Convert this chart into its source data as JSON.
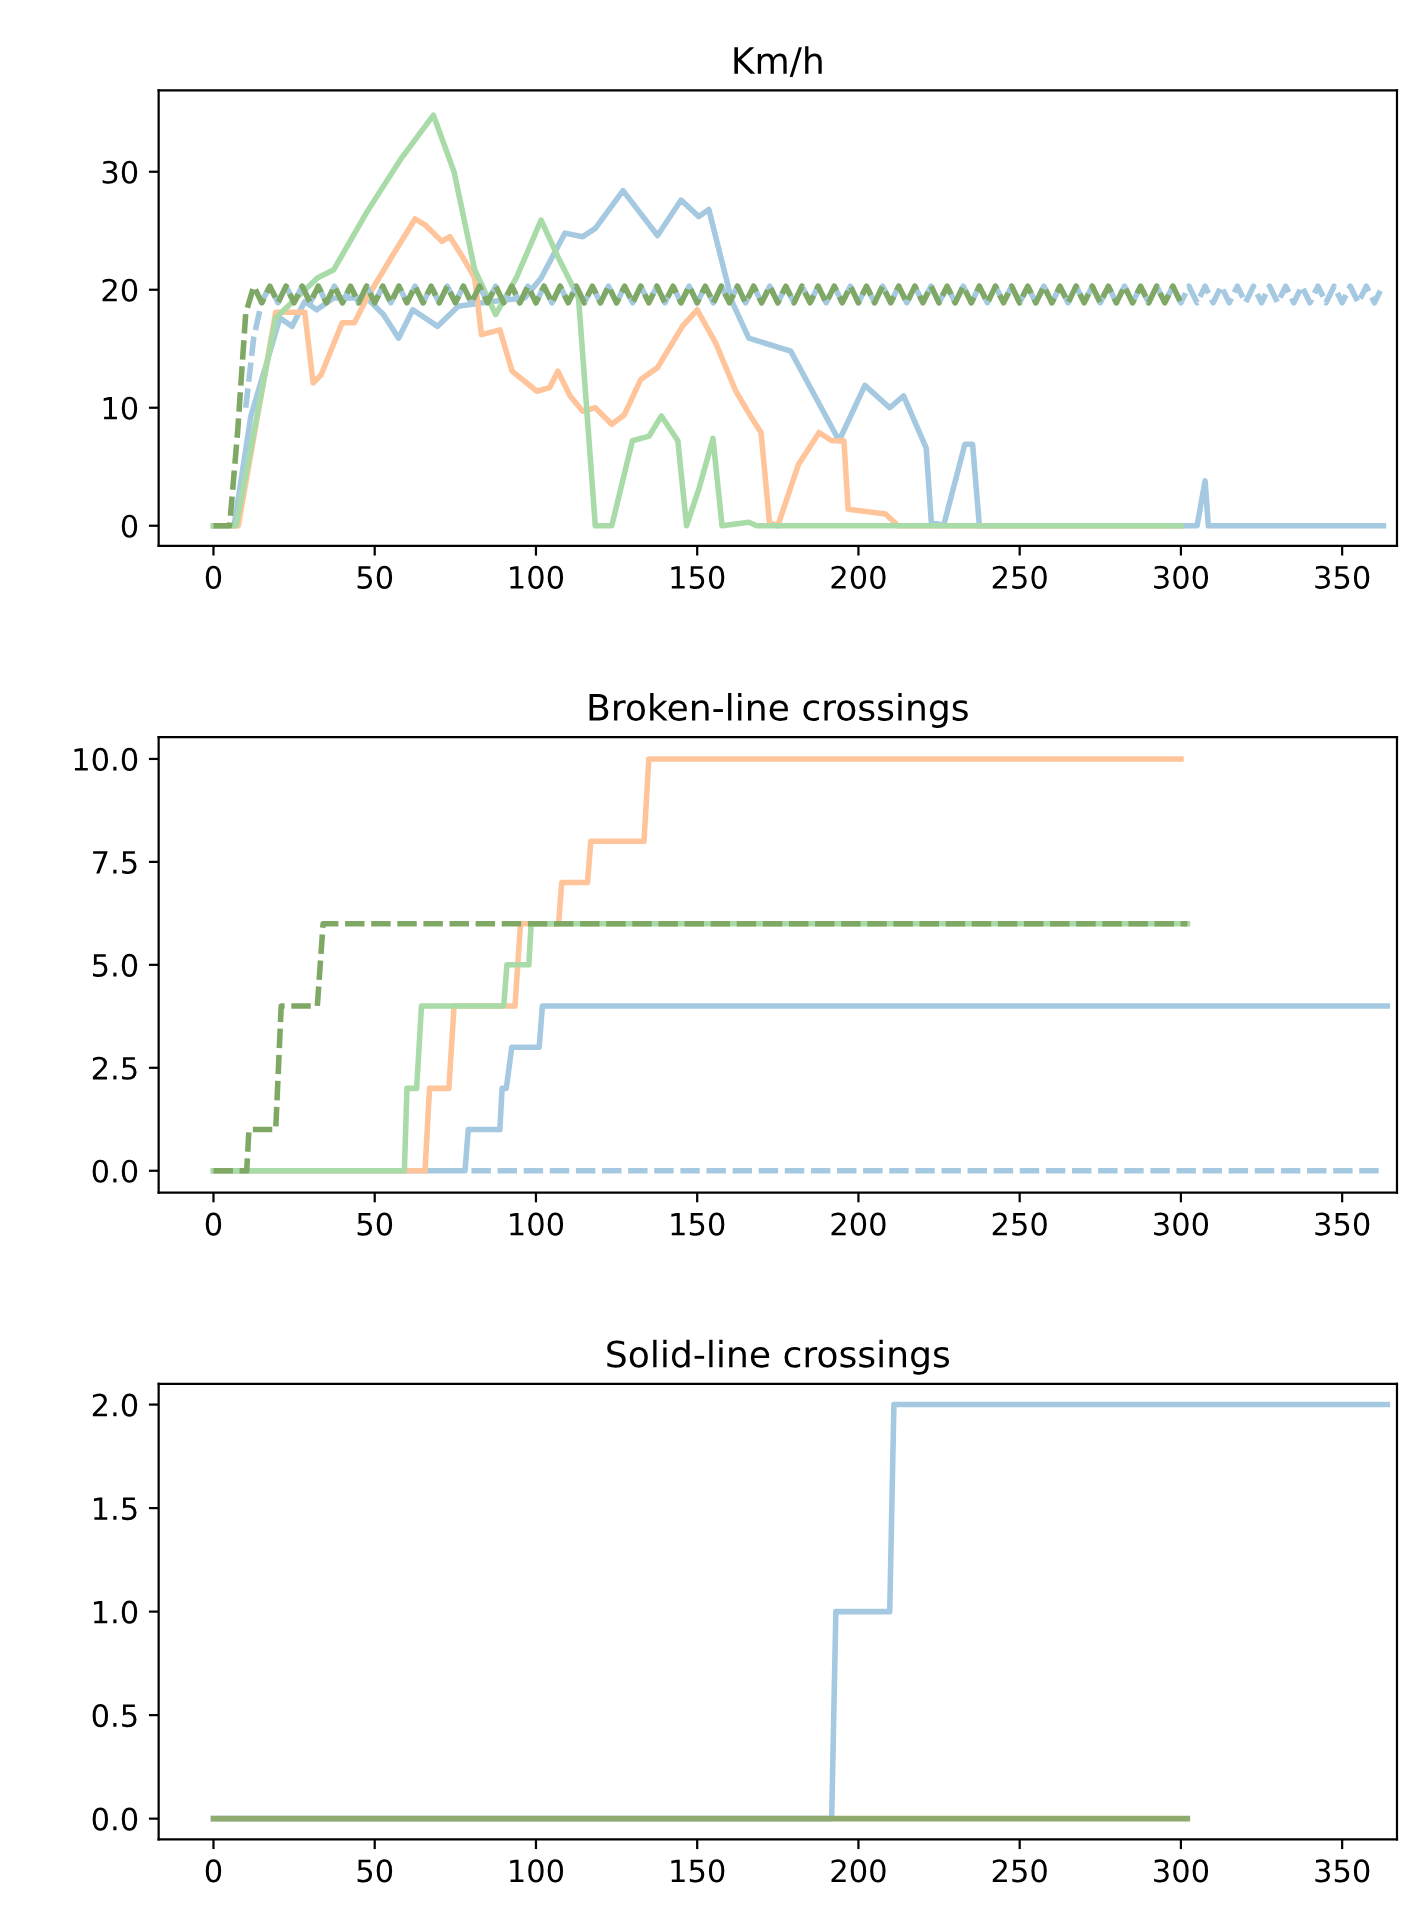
{
  "chart_data": [
    {
      "type": "line",
      "title": "Km/h",
      "xlim": [
        -17,
        367
      ],
      "ylim": [
        -1.7,
        36.9
      ],
      "xticks": [
        0,
        50,
        100,
        150,
        200,
        250,
        300,
        350
      ],
      "yticks": [
        0,
        10,
        20,
        30
      ],
      "marker": "none",
      "x": [
        0,
        2.5,
        5,
        7.5,
        10,
        12.5,
        15,
        17.5,
        20,
        22.5,
        25,
        27.5,
        30,
        32.5,
        35,
        37.5,
        40,
        42.5,
        45,
        47.5,
        50,
        52.5,
        55,
        57.5,
        60,
        62.5,
        65,
        67.5,
        70,
        72.5,
        75,
        77.5,
        80,
        82.5,
        85,
        87.5,
        90,
        92.5,
        95,
        97.5,
        100,
        102.5,
        105,
        107.5,
        110,
        112.5,
        115,
        117.5,
        120,
        122.5,
        125,
        127.5,
        130,
        132.5,
        135,
        137.5,
        140,
        142.5,
        145,
        147.5,
        150,
        152.5,
        155,
        157.5,
        160,
        162.5,
        165,
        167.5,
        170,
        172.5,
        175,
        177.5,
        180,
        182.5,
        185,
        187.5,
        190,
        192.5,
        195,
        197.5,
        200,
        202.5,
        205,
        207.5,
        210,
        212.5,
        215,
        217.5,
        220,
        222.5,
        225,
        227.5,
        230,
        232.5,
        235,
        237.5,
        240,
        242.5,
        245,
        247.5,
        250,
        252.5,
        255,
        257.5,
        260,
        262.5,
        265,
        267.5,
        270,
        272.5,
        275,
        277.5,
        280,
        282.5,
        285,
        287.5,
        290,
        292.5,
        295,
        297.5,
        300,
        302.5,
        305,
        307.5,
        310,
        312.5,
        315,
        317.5,
        320,
        322.5,
        325,
        327.5,
        330,
        332.5,
        335,
        337.5,
        340,
        342.5,
        345,
        347.5,
        350,
        352.5,
        355,
        357.5,
        360,
        362.5
      ],
      "series": [
        {
          "color": "#a5c9e1",
          "line_style": "solid",
          "x": [
            0,
            6.4,
            11.6,
            20.6,
            24.4,
            28.3,
            32,
            37.3,
            47.6,
            52.7,
            57.4,
            61.8,
            69.5,
            75.9,
            86.2,
            96.5,
            101.6,
            109,
            114.5,
            118.4,
            127,
            137.7,
            145,
            150.5,
            153.6,
            160.8,
            166,
            179,
            194,
            202,
            209.7,
            214,
            221,
            222.6,
            226.4,
            233,
            235.4,
            237.5,
            305,
            307.5,
            308.5,
            362.8
          ],
          "values": [
            0,
            0,
            9.3,
            17.6,
            16.9,
            19,
            18.3,
            19.3,
            19.3,
            17.9,
            15.9,
            18.3,
            16.9,
            18.6,
            19,
            19.3,
            21,
            24.8,
            24.5,
            25.2,
            28.4,
            24.6,
            27.6,
            26.2,
            26.8,
            19,
            15.9,
            14.8,
            7.2,
            11.9,
            10,
            11,
            6.6,
            0.3,
            0,
            6.9,
            6.9,
            0,
            0,
            3.8,
            0,
            0
          ]
        },
        {
          "color": "#ffc49a",
          "line_style": "solid",
          "x": [
            0,
            3.9,
            7.7,
            19.3,
            28.3,
            30.9,
            33.4,
            39.9,
            43.7,
            47.6,
            55.3,
            62.5,
            65.6,
            70.8,
            73.3,
            77.2,
            81,
            83.1,
            88.8,
            92.6,
            100.3,
            104.2,
            106.8,
            110.6,
            114.5,
            118.4,
            123.5,
            127.4,
            132.5,
            137.7,
            145.4,
            150,
            155.7,
            162,
            167.2,
            169.8,
            172.4,
            175,
            181.4,
            187.8,
            191.7,
            195.5,
            196.8,
            208.4,
            212.3,
            299.8
          ],
          "values": [
            0,
            0,
            0,
            18.1,
            18.1,
            12.1,
            12.8,
            17.2,
            17.2,
            19.3,
            22.8,
            26,
            25.5,
            24.1,
            24.5,
            22.8,
            21,
            16.2,
            16.6,
            13.1,
            11.4,
            11.7,
            13.1,
            11,
            9.7,
            10,
            8.6,
            9.4,
            12.4,
            13.4,
            16.9,
            18.3,
            15.5,
            11.4,
            9,
            7.9,
            0.3,
            0,
            5.2,
            7.9,
            7.2,
            7.2,
            1.4,
            1,
            0,
            0
          ]
        },
        {
          "color": "#a8dba8",
          "line_style": "solid",
          "x": [
            0,
            7,
            19.3,
            32.2,
            37.3,
            47.6,
            57.9,
            68.2,
            74.6,
            81,
            87.5,
            93.9,
            101.6,
            106.8,
            113.2,
            118.4,
            123.5,
            129.9,
            135.1,
            138.9,
            144,
            146.7,
            150.5,
            154.9,
            157.7,
            166,
            168.5,
            300
          ],
          "values": [
            0,
            0,
            17.6,
            21,
            21.7,
            26.6,
            31,
            34.8,
            30,
            21.7,
            17.9,
            21,
            25.9,
            22.8,
            19.3,
            0,
            0,
            7.2,
            7.6,
            9.3,
            7.2,
            0,
            3.1,
            7.4,
            0,
            0.3,
            0,
            0
          ]
        },
        {
          "color": "#a5c9e1",
          "line_style": "dashed",
          "values": [
            null,
            null,
            null,
            null,
            10,
            16,
            19,
            20.3,
            18.9,
            20.3,
            18.9,
            20.3,
            18.9,
            20.3,
            18.9,
            20.3,
            18.9,
            20.3,
            18.9,
            20.3,
            18.9,
            20.3,
            18.9,
            20.3,
            18.9,
            20.3,
            18.9,
            20.3,
            18.9,
            20.3,
            18.9,
            20.3,
            18.9,
            20.3,
            18.9,
            20.3,
            18.9,
            20.3,
            18.9,
            20.3,
            18.9,
            20.3,
            18.9,
            20.3,
            18.9,
            20.3,
            18.9,
            20.3,
            18.9,
            20.3,
            18.9,
            20.3,
            18.9,
            20.3,
            18.9,
            20.3,
            18.9,
            20.3,
            18.9,
            20.3,
            18.9,
            20.3,
            18.9,
            20.3,
            18.9,
            20.3,
            18.9,
            20.3,
            18.9,
            20.3,
            18.9,
            20.3,
            18.9,
            20.3,
            18.9,
            20.3,
            18.9,
            20.3,
            18.9,
            20.3,
            18.9,
            20.3,
            18.9,
            20.3,
            18.9,
            20.3,
            18.9,
            20.3,
            18.9,
            20.3,
            18.9,
            20.3,
            18.9,
            20.3,
            18.9,
            20.3,
            18.9,
            20.3,
            18.9,
            20.3,
            18.9,
            20.3,
            18.9,
            20.3,
            18.9,
            20.3,
            18.9,
            20.3,
            18.9,
            20.3,
            18.9,
            20.3,
            18.9,
            20.3,
            18.9,
            20.3,
            18.9,
            20.3,
            18.9,
            20.3,
            18.9,
            20.3,
            18.9,
            20.3,
            18.9,
            20.3,
            18.9,
            20.3,
            18.9,
            20.3,
            18.9,
            20.3,
            18.9,
            20.3,
            18.9,
            20.3,
            18.9,
            20.3,
            18.9,
            20.3,
            18.9,
            20.3,
            18.9,
            20.3,
            18.9,
            20.3
          ]
        },
        {
          "color": "#7fa865",
          "line_style": "dashed",
          "values": [
            0,
            0,
            0,
            8,
            18,
            20.3,
            18.9,
            20.3,
            18.9,
            20.3,
            18.9,
            20.3,
            18.9,
            20.3,
            18.9,
            20.3,
            18.9,
            20.3,
            18.9,
            20.3,
            18.9,
            20.3,
            18.9,
            20.3,
            18.9,
            20.3,
            18.9,
            20.3,
            18.9,
            20.3,
            18.9,
            20.3,
            18.9,
            20.3,
            18.9,
            20.3,
            18.9,
            20.3,
            18.9,
            20.3,
            18.9,
            20.3,
            18.9,
            20.3,
            18.9,
            20.3,
            18.9,
            20.3,
            18.9,
            20.3,
            18.9,
            20.3,
            18.9,
            20.3,
            18.9,
            20.3,
            18.9,
            20.3,
            18.9,
            20.3,
            18.9,
            20.3,
            18.9,
            20.3,
            18.9,
            20.3,
            18.9,
            20.3,
            18.9,
            20.3,
            18.9,
            20.3,
            18.9,
            20.3,
            18.9,
            20.3,
            18.9,
            20.3,
            18.9,
            20.3,
            18.9,
            20.3,
            18.9,
            20.3,
            18.9,
            20.3,
            18.9,
            20.3,
            18.9,
            20.3,
            18.9,
            20.3,
            18.9,
            20.3,
            18.9,
            20.3,
            18.9,
            20.3,
            18.9,
            20.3,
            18.9,
            20.3,
            18.9,
            20.3,
            18.9,
            20.3,
            18.9,
            20.3,
            18.9,
            20.3,
            18.9,
            20.3,
            18.9,
            20.3,
            18.9,
            20.3,
            18.9,
            20.3,
            18.9,
            20.3,
            18.9,
            null,
            null,
            null,
            null,
            null,
            null,
            null,
            null,
            null,
            null,
            null,
            null,
            null,
            null,
            null,
            null,
            null,
            null,
            null,
            null,
            null,
            null,
            null,
            null,
            null
          ]
        }
      ]
    },
    {
      "type": "line",
      "title": "Broken-line crossings",
      "xlim": [
        -17,
        367
      ],
      "ylim": [
        -0.53,
        10.53
      ],
      "xticks": [
        0,
        50,
        100,
        150,
        200,
        250,
        300,
        350
      ],
      "yticks": [
        {
          "value": 0,
          "label": "0.0"
        },
        {
          "value": 2.5,
          "label": "2.5"
        },
        {
          "value": 5,
          "label": "5.0"
        },
        {
          "value": 7.5,
          "label": "7.5"
        },
        {
          "value": 10,
          "label": "10.0"
        }
      ],
      "marker": "none",
      "series": [
        {
          "color": "#a5c9e1",
          "line_style": "solid",
          "x": [
            0,
            78,
            79,
            88.8,
            89.5,
            90.8,
            92.5,
            93.4,
            101,
            102,
            364
          ],
          "values": [
            0,
            0,
            1,
            1,
            2,
            2,
            3,
            3,
            3,
            4,
            4
          ]
        },
        {
          "color": "#ffc49a",
          "line_style": "solid",
          "x": [
            0,
            65.6,
            67,
            73,
            74.6,
            93.5,
            95.2,
            107,
            108,
            116,
            117,
            133.5,
            135,
            300
          ],
          "values": [
            0,
            0,
            2,
            2,
            4,
            4,
            6,
            6,
            7,
            7,
            8,
            8,
            10,
            10
          ]
        },
        {
          "color": "#a8dba8",
          "line_style": "solid",
          "x": [
            0,
            59.2,
            60,
            63,
            64.5,
            90,
            91,
            97.8,
            98.5,
            302
          ],
          "values": [
            0,
            0,
            2,
            2,
            4,
            4,
            5,
            5,
            6,
            6
          ]
        },
        {
          "color": "#a5c9e1",
          "line_style": "dashed",
          "x": [
            80,
            363
          ],
          "values": [
            0,
            0
          ]
        },
        {
          "color": "#7fa865",
          "line_style": "dashed",
          "x": [
            0,
            10.3,
            11,
            19.3,
            21,
            32.2,
            34,
            302
          ],
          "values": [
            0,
            0,
            1,
            1,
            4,
            4,
            6,
            6
          ]
        }
      ]
    },
    {
      "type": "line",
      "title": "Solid-line crossings",
      "xlim": [
        -17,
        367
      ],
      "ylim": [
        -0.1,
        2.1
      ],
      "xticks": [
        0,
        50,
        100,
        150,
        200,
        250,
        300,
        350
      ],
      "yticks": [
        {
          "value": 0,
          "label": "0.0"
        },
        {
          "value": 0.5,
          "label": "0.5"
        },
        {
          "value": 1,
          "label": "1.0"
        },
        {
          "value": 1.5,
          "label": "1.5"
        },
        {
          "value": 2,
          "label": "2.0"
        }
      ],
      "marker": "none",
      "series": [
        {
          "color": "#a5c9e1",
          "line_style": "solid",
          "x": [
            0,
            191.7,
            193,
            209.7,
            211,
            364
          ],
          "values": [
            0,
            0,
            1,
            1,
            2,
            2
          ]
        },
        {
          "color": "#8faa6e",
          "line_style": "solid",
          "x": [
            0,
            302
          ],
          "values": [
            0,
            0
          ]
        }
      ]
    }
  ]
}
